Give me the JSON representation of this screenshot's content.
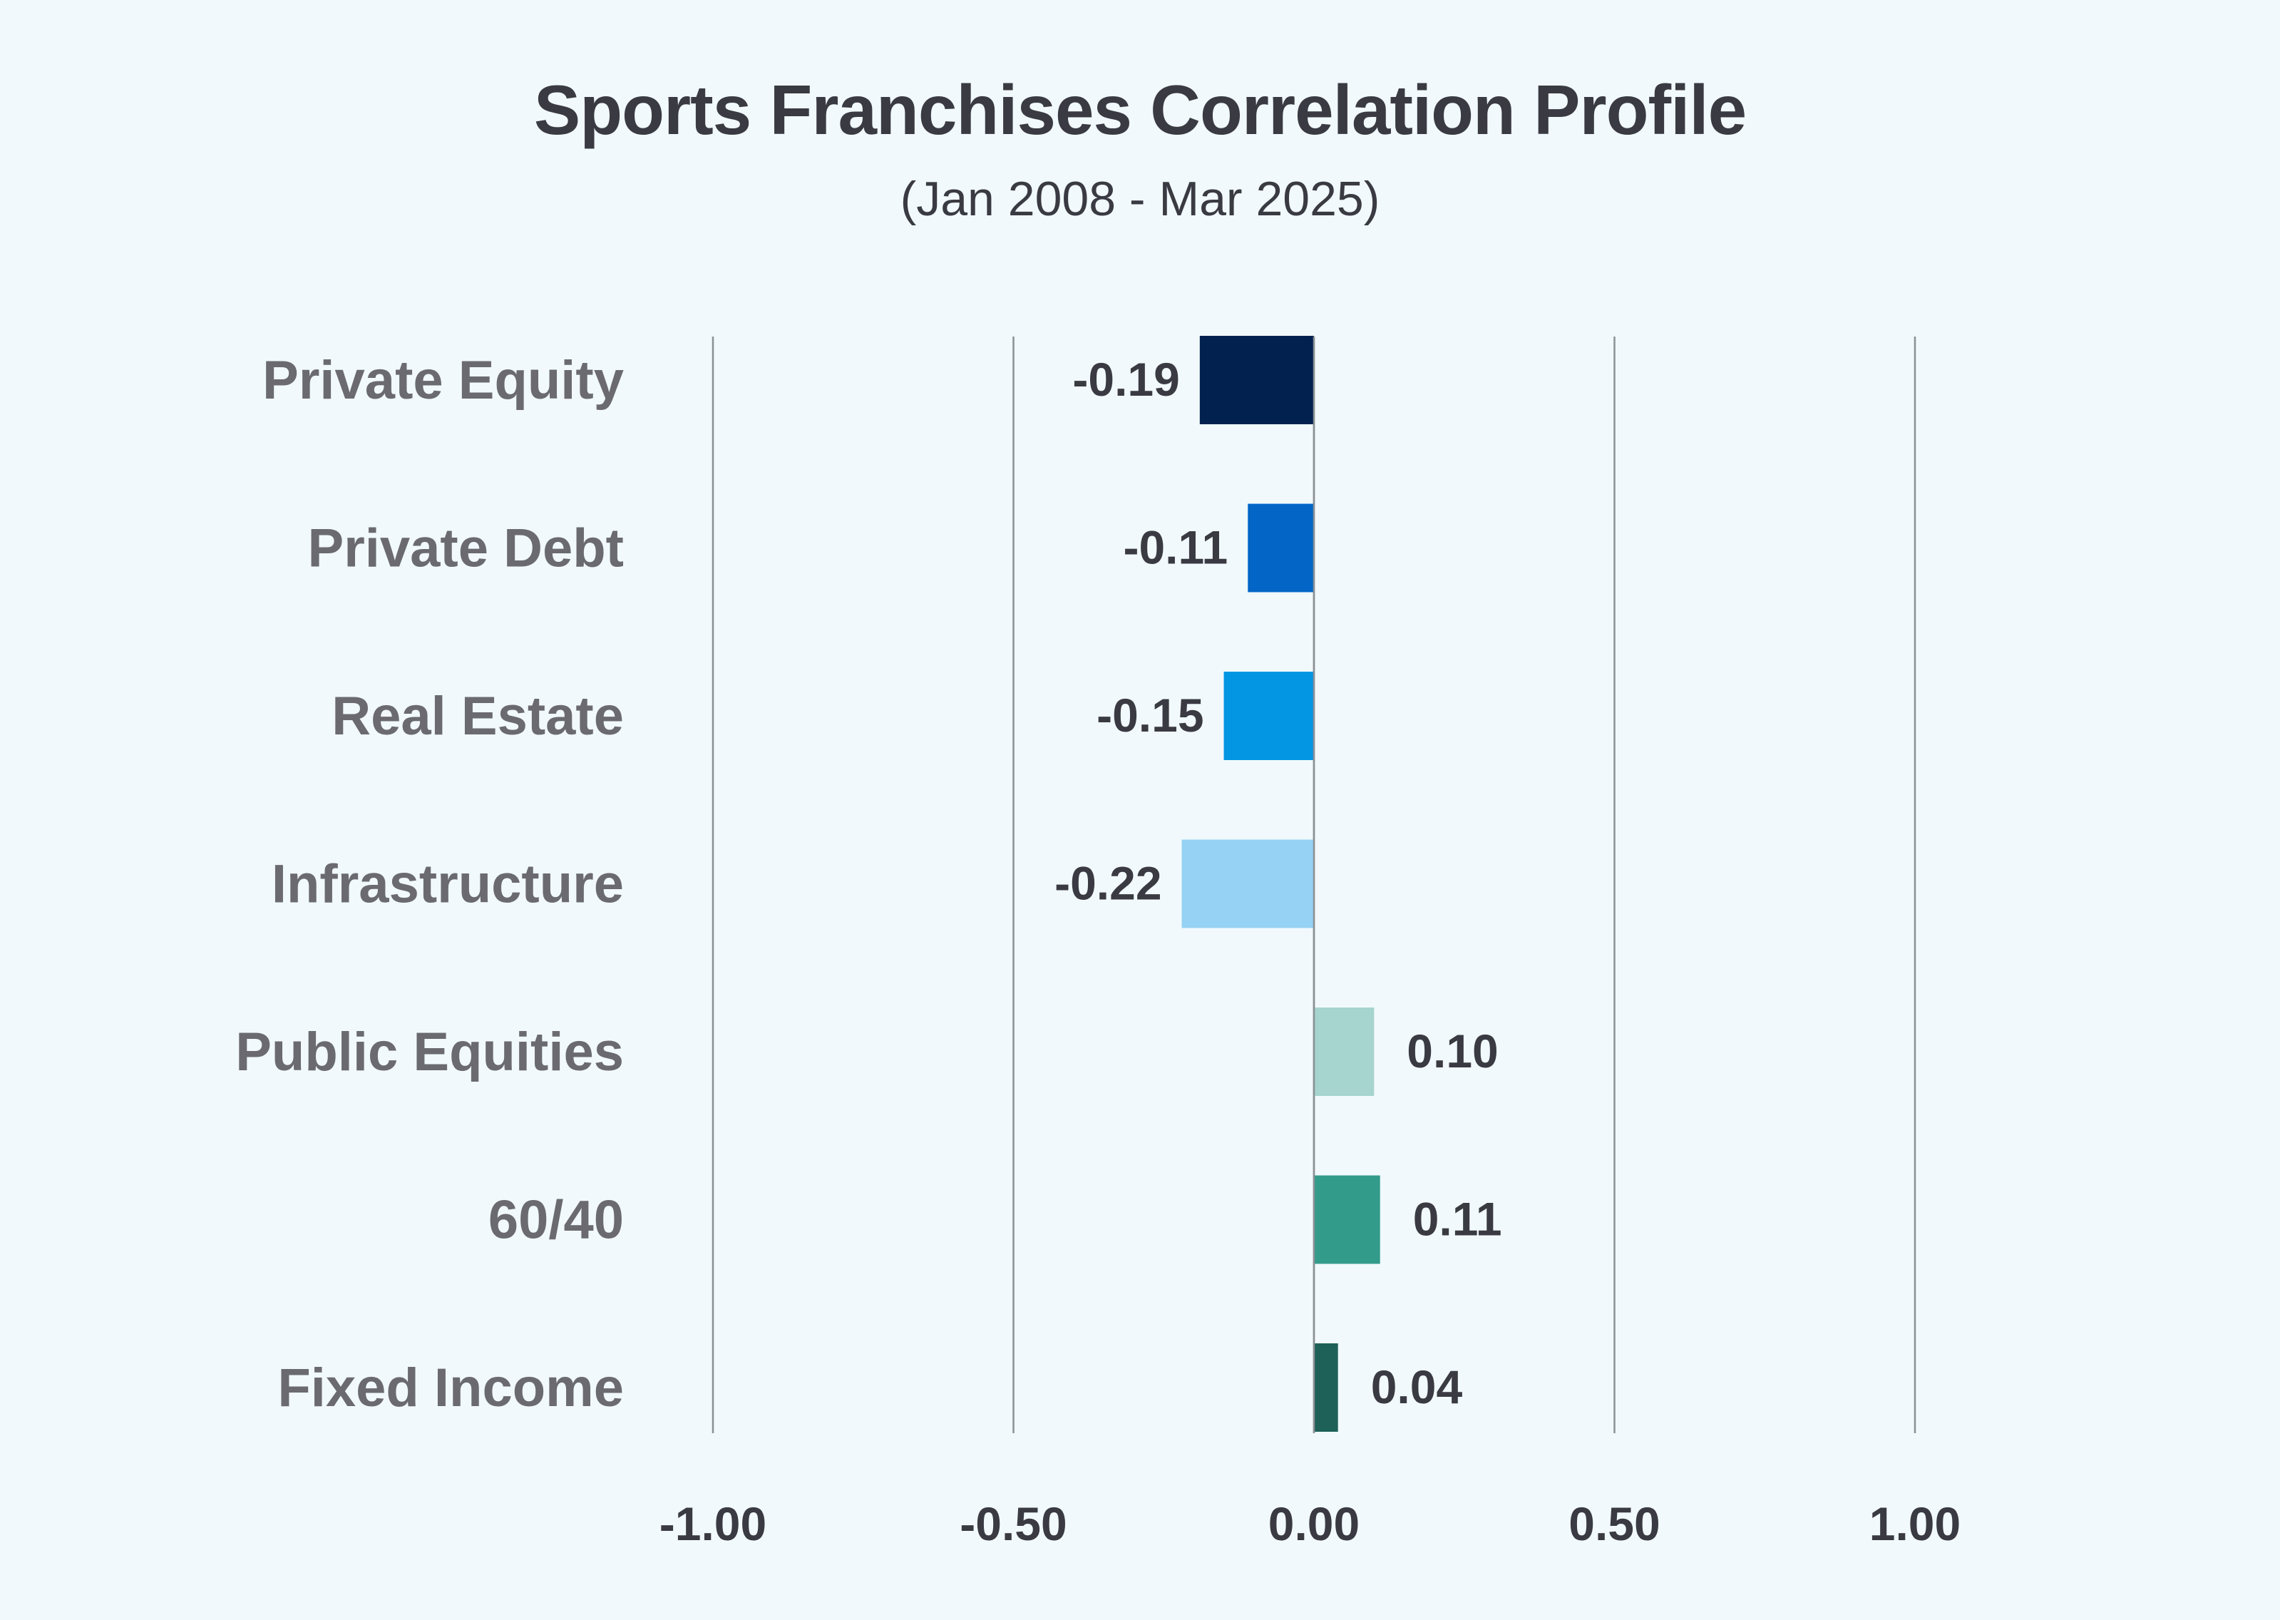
{
  "chart_data": {
    "type": "bar",
    "orientation": "horizontal",
    "title": "Sports Franchises Correlation Profile",
    "subtitle": "(Jan 2008 - Mar 2025)",
    "xlabel": "",
    "ylabel": "",
    "xlim": [
      -1.0,
      1.0
    ],
    "ticks": [
      -1.0,
      -0.5,
      0.0,
      0.5,
      1.0
    ],
    "tick_labels": [
      "-1.00",
      "-0.50",
      "0.00",
      "0.50",
      "1.00"
    ],
    "grid": "vertical",
    "categories": [
      "Private Equity",
      "Private Debt",
      "Real Estate",
      "Infrastructure",
      "Public Equities",
      "60/40",
      "Fixed Income"
    ],
    "values": [
      -0.19,
      -0.11,
      -0.15,
      -0.22,
      0.1,
      0.11,
      0.04
    ],
    "value_labels": [
      "-0.19",
      "-0.11",
      "-0.15",
      "-0.22",
      "0.10",
      "0.11",
      "0.04"
    ],
    "colors": [
      "#03214f",
      "#0366c7",
      "#0396e3",
      "#95d2f4",
      "#a6d4ce",
      "#339b8a",
      "#1e6158"
    ]
  }
}
